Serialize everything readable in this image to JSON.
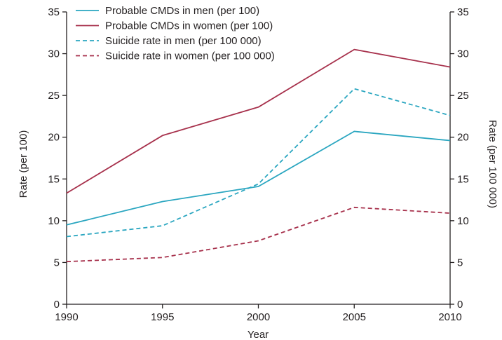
{
  "chart_data": {
    "type": "line",
    "x": [
      1990,
      1995,
      2000,
      2005,
      2010
    ],
    "xlabel": "Year",
    "ylabel_left": "Rate (per 100)",
    "ylabel_right": "Rate (per 100 000)",
    "xlim": [
      1990,
      2010
    ],
    "ylim": [
      0,
      35
    ],
    "x_ticks": [
      "1990",
      "1995",
      "2000",
      "2005",
      "2010"
    ],
    "y_ticks": [
      "0",
      "5",
      "10",
      "15",
      "20",
      "25",
      "30",
      "35"
    ],
    "legend_position": "top-left",
    "grid": false,
    "series": [
      {
        "name": "Probable CMDs in men (per 100)",
        "values": [
          9.5,
          12.3,
          14.1,
          20.7,
          19.6
        ],
        "color": "#2aa6c0",
        "dash": "solid",
        "axis": "left"
      },
      {
        "name": "Probable CMDs in women (per 100)",
        "values": [
          13.3,
          20.2,
          23.6,
          30.5,
          28.4
        ],
        "color": "#a7314c",
        "dash": "solid",
        "axis": "left"
      },
      {
        "name": "Suicide rate in men (per 100 000)",
        "values": [
          8.1,
          9.4,
          14.4,
          25.8,
          22.6
        ],
        "color": "#2aa6c0",
        "dash": "dashed",
        "axis": "right"
      },
      {
        "name": "Suicide rate in women (per 100 000)",
        "values": [
          5.1,
          5.6,
          7.6,
          11.6,
          10.9
        ],
        "color": "#a7314c",
        "dash": "dashed",
        "axis": "right"
      }
    ]
  }
}
